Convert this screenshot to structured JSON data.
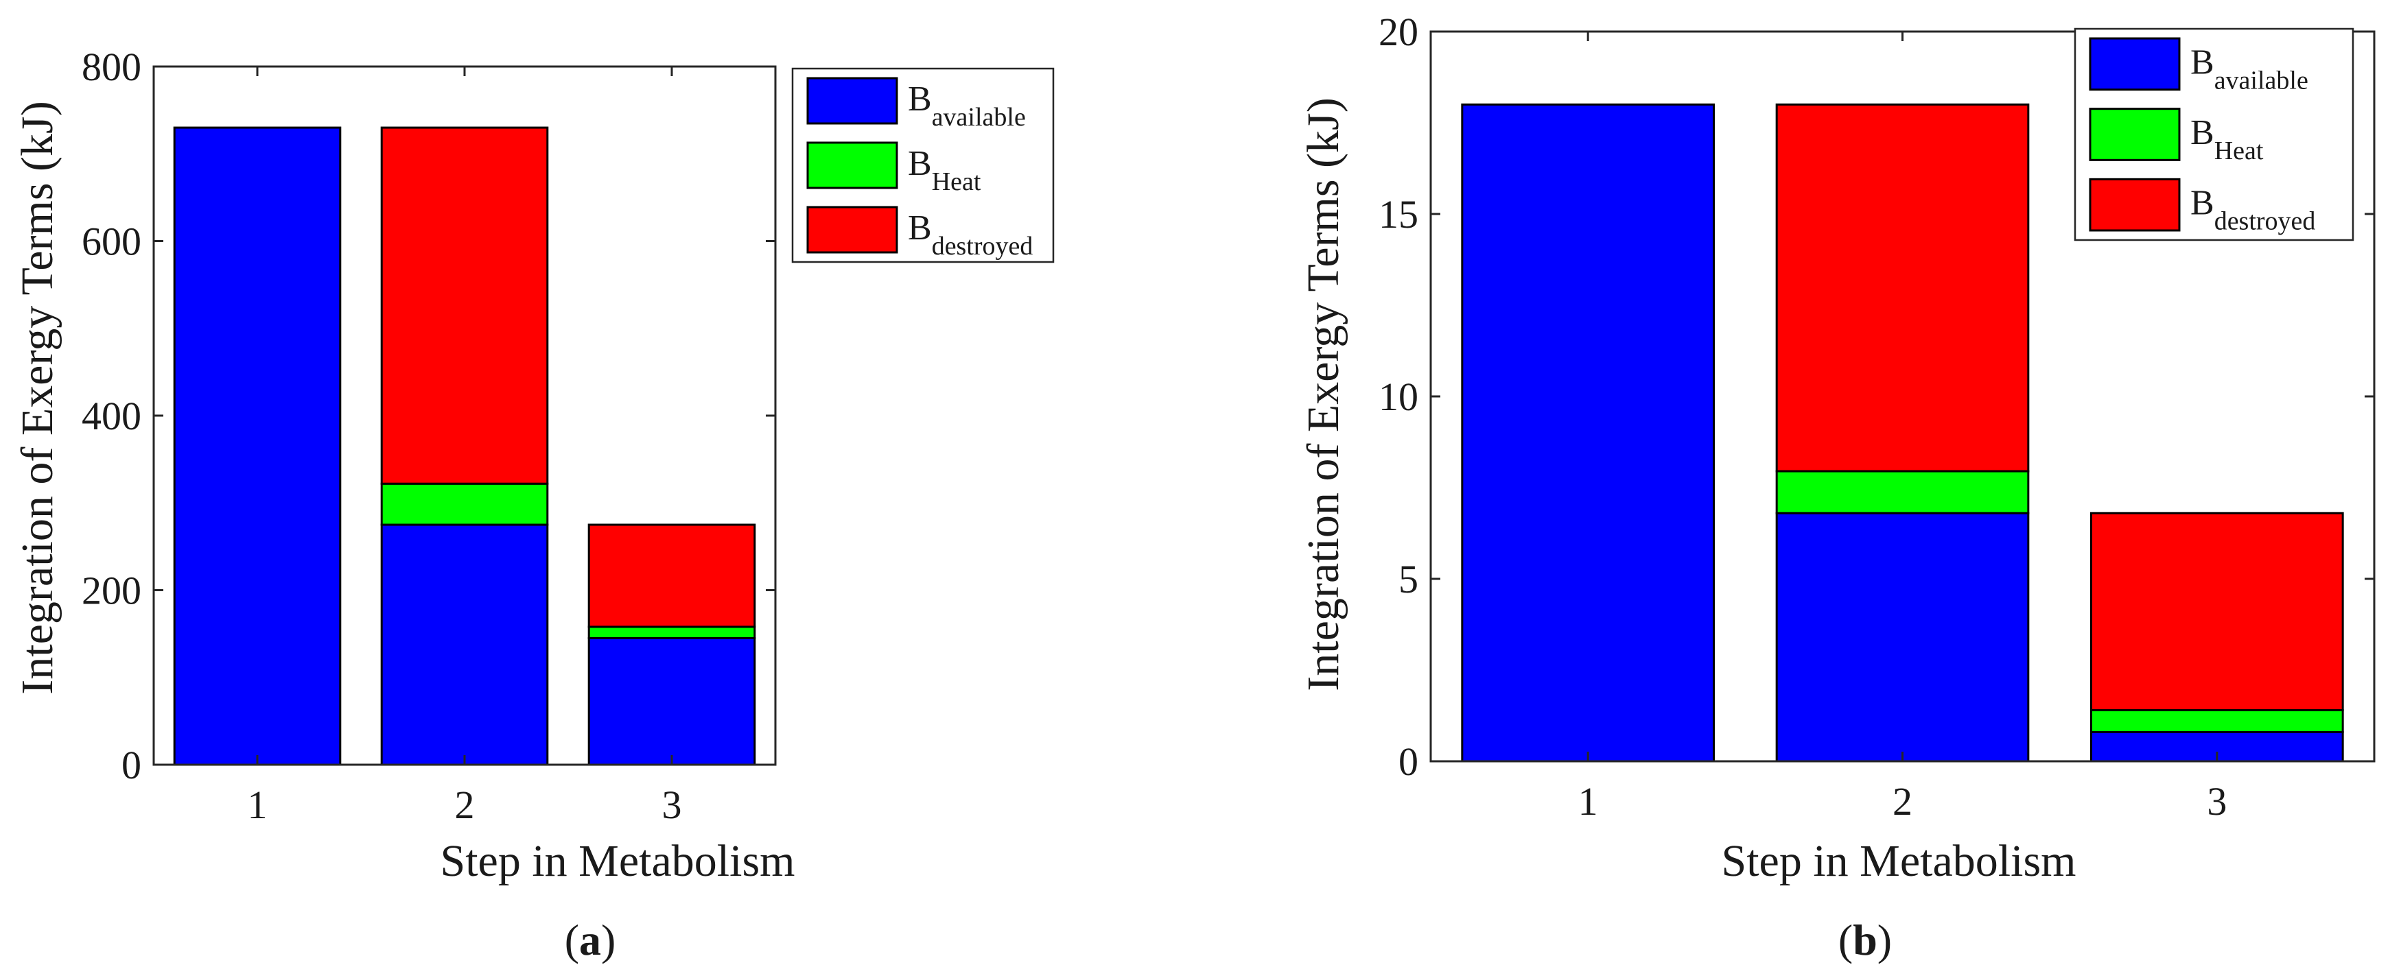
{
  "chart_data": [
    {
      "type": "bar",
      "stacked": true,
      "panel_label": "(a)",
      "categories": [
        "1",
        "2",
        "3"
      ],
      "xlabel": "Step in Metabolism",
      "ylabel": "Integration of Exergy Terms (kJ)",
      "ylim": [
        0,
        800
      ],
      "yticks": [
        0,
        200,
        400,
        600,
        800
      ],
      "grid": false,
      "legend_position": "top-right",
      "series": [
        {
          "base": "B",
          "sub": "available",
          "color": "#0000ff",
          "values": [
            730,
            275,
            145
          ]
        },
        {
          "base": "B",
          "sub": "Heat",
          "color": "#00ff00",
          "values": [
            0,
            47,
            13
          ]
        },
        {
          "base": "B",
          "sub": "destroyed",
          "color": "#ff0000",
          "values": [
            0,
            408,
            117
          ]
        }
      ]
    },
    {
      "type": "bar",
      "stacked": true,
      "panel_label": "(b)",
      "categories": [
        "1",
        "2",
        "3"
      ],
      "xlabel": "Step in Metabolism",
      "ylabel": "Integration of Exergy Terms (kJ)",
      "ylim": [
        0,
        20
      ],
      "yticks": [
        0,
        5,
        10,
        15,
        20
      ],
      "grid": false,
      "legend_position": "top-right",
      "series": [
        {
          "base": "B",
          "sub": "available",
          "color": "#0000ff",
          "values": [
            18,
            6.8,
            0.8
          ]
        },
        {
          "base": "B",
          "sub": "Heat",
          "color": "#00ff00",
          "values": [
            0,
            1.15,
            0.6
          ]
        },
        {
          "base": "B",
          "sub": "destroyed",
          "color": "#ff0000",
          "values": [
            0,
            10.05,
            5.4
          ]
        }
      ]
    }
  ]
}
